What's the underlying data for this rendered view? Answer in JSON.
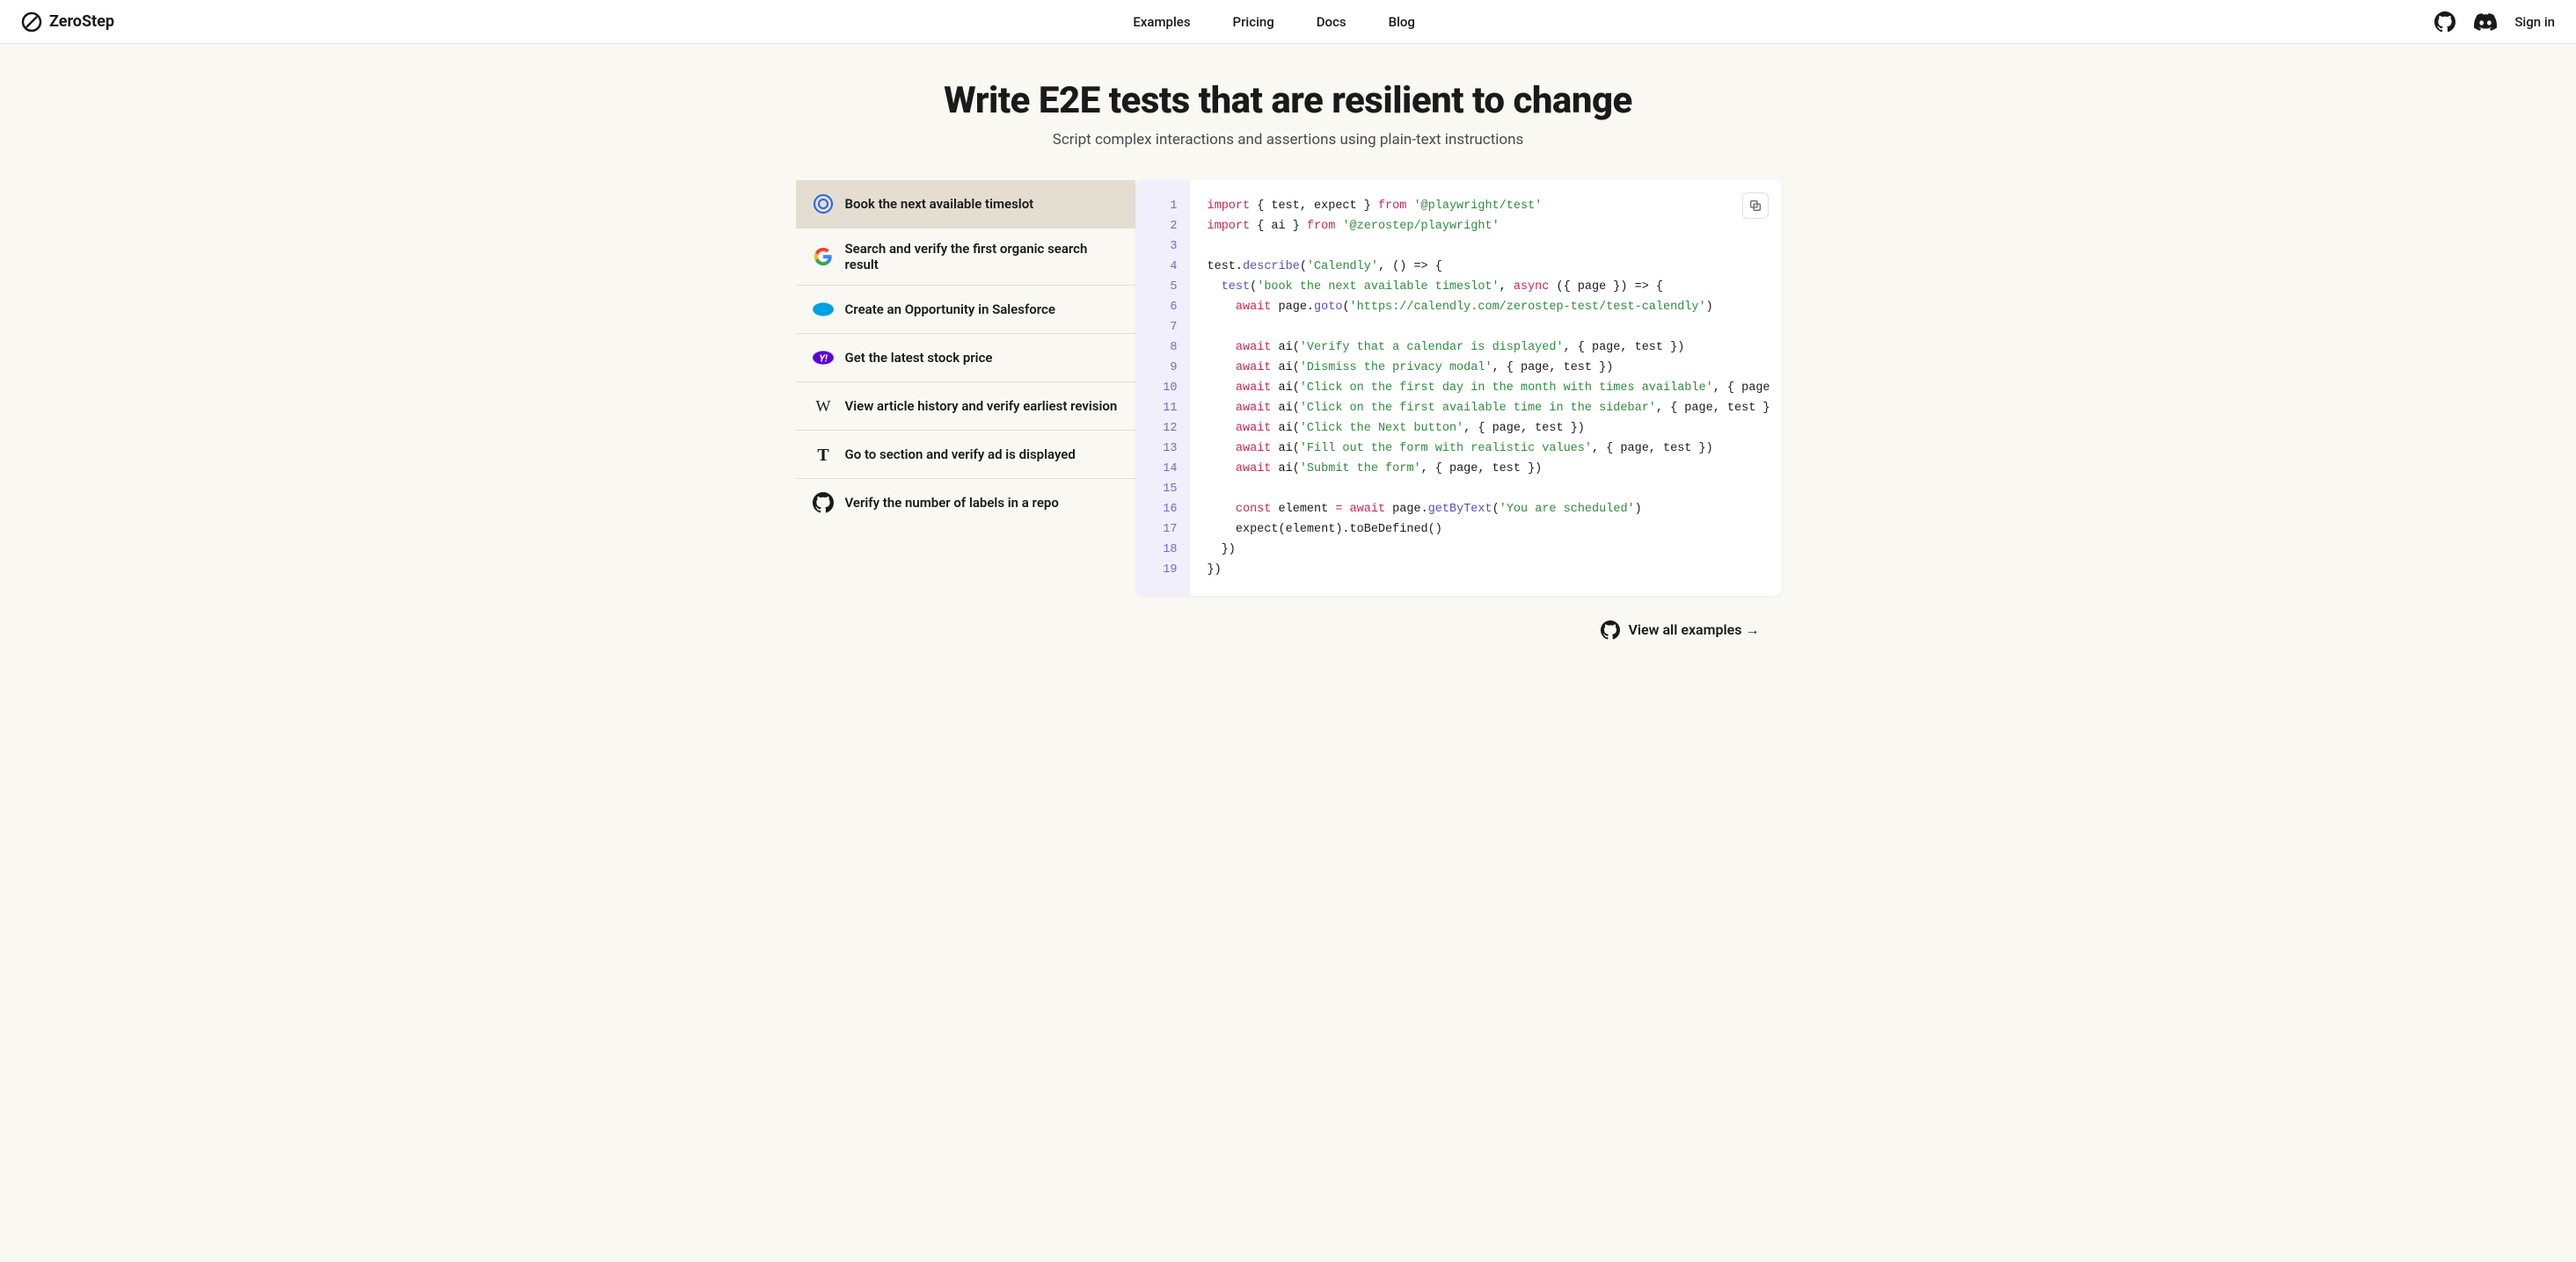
{
  "header": {
    "brand": "ZeroStep",
    "nav": {
      "examples": "Examples",
      "pricing": "Pricing",
      "docs": "Docs",
      "blog": "Blog"
    },
    "signin": "Sign in"
  },
  "hero": {
    "title": "Write E2E tests that are resilient to change",
    "subtitle": "Script complex interactions and assertions using plain-text instructions"
  },
  "sidebar": {
    "items": [
      {
        "label": "Book the next available timeslot"
      },
      {
        "label": "Search and verify the first organic search result"
      },
      {
        "label": "Create an Opportunity in Salesforce"
      },
      {
        "label": "Get the latest stock price"
      },
      {
        "label": "View article history and verify earliest revision"
      },
      {
        "label": "Go to section and verify ad is displayed"
      },
      {
        "label": "Verify the number of labels in a repo"
      }
    ]
  },
  "code": {
    "line_count": 19,
    "colors": {
      "keyword": "#c82854",
      "string": "#2e8b3e",
      "function": "#5b4bc4",
      "gutter_bg": "#f1effb",
      "gutter_text": "#6b6fcc"
    },
    "tokens": {
      "import": "import",
      "from": "from",
      "test_expect": "{ test, expect }",
      "ai_brace": "{ ai }",
      "pkg_playwright": "'@playwright/test'",
      "pkg_zerostep": "'@zerostep/playwright'",
      "describe_pre": "test.",
      "describe": "describe",
      "describe_str": "'Calendly'",
      "describe_post": ", () => {",
      "test_call": "test",
      "test_str": "'book the next available timeslot'",
      "async": "async",
      "test_args": " ({ page }) => {",
      "await": "await",
      "goto_pre": " page.",
      "goto": "goto",
      "goto_str": "'https://calendly.com/zerostep-test/test-calendly'",
      "ai_call": " ai(",
      "ai1": "'Verify that a calendar is displayed'",
      "ai_suffix": ", { page, test })",
      "ai2": "'Dismiss the privacy modal'",
      "ai3": "'Click on the first day in the month with times available'",
      "ai3_suffix": ", { page",
      "ai4": "'Click on the first available time in the sidebar'",
      "ai4_suffix": ", { page, test }",
      "ai5": "'Click the Next button'",
      "ai6": "'Fill out the form with realistic values'",
      "ai7": "'Submit the form'",
      "const": "const",
      "element_eq": " element ",
      "eq": "=",
      "getby_pre": " page.",
      "getby": "getByText",
      "getby_str": "'You are scheduled'",
      "expect_line": "    expect(element).toBeDefined()",
      "close_brace1": "  })",
      "close_brace2": "})"
    }
  },
  "footer": {
    "view_all": "View all examples →"
  }
}
